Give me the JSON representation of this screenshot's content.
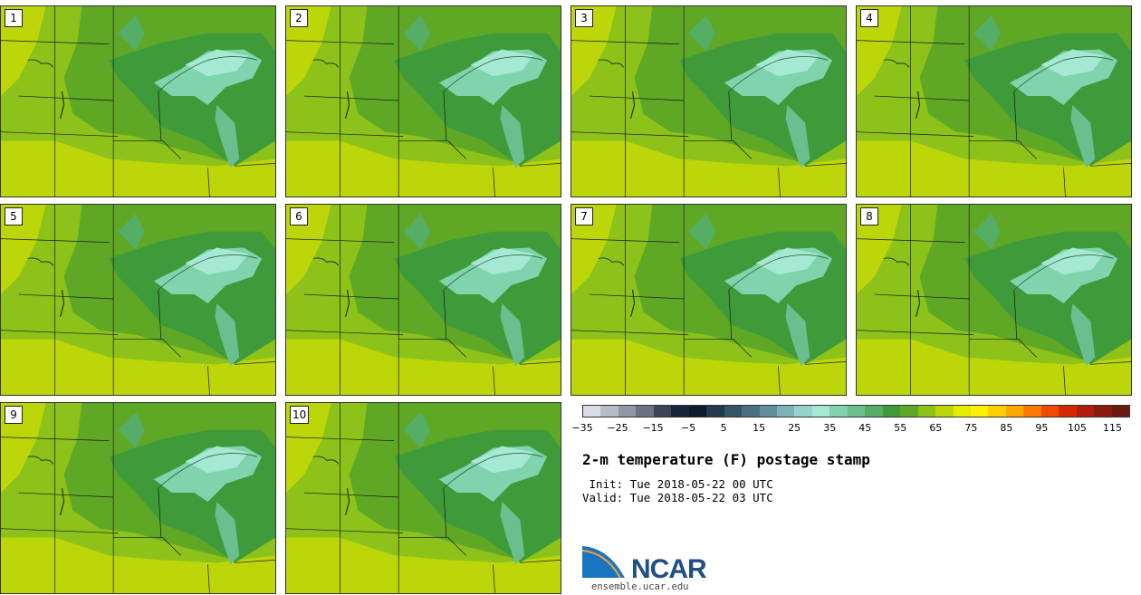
{
  "members": [
    {
      "label": "1"
    },
    {
      "label": "2"
    },
    {
      "label": "3"
    },
    {
      "label": "4"
    },
    {
      "label": "5"
    },
    {
      "label": "6"
    },
    {
      "label": "7"
    },
    {
      "label": "8"
    },
    {
      "label": "9"
    },
    {
      "label": "10"
    }
  ],
  "colorbar": {
    "colors": [
      "#d9dde3",
      "#b6bcc6",
      "#8f97a5",
      "#6a7385",
      "#3c4556",
      "#18243a",
      "#0f1c30",
      "#24384f",
      "#345468",
      "#4a6f82",
      "#5f8e9a",
      "#7fb2b6",
      "#96d3cb",
      "#a5e8d4",
      "#7fd3ad",
      "#6bbf8e",
      "#55ad66",
      "#3f9a3a",
      "#5fa826",
      "#8cc21a",
      "#bcd60a",
      "#e5ec00",
      "#ffef00",
      "#ffd000",
      "#ffa800",
      "#ff7a00",
      "#f04a00",
      "#d62800",
      "#b21c0a",
      "#8c1a0c",
      "#6a1a10"
    ],
    "tick_labels": [
      "−35",
      "−25",
      "−15",
      "−5",
      "5",
      "15",
      "25",
      "35",
      "45",
      "55",
      "65",
      "75",
      "85",
      "95",
      "105",
      "115"
    ]
  },
  "title": "2-m temperature (F) postage stamp",
  "init_line": " Init: Tue 2018-05-22 00 UTC",
  "valid_line": "Valid: Tue 2018-05-22 03 UTC",
  "logo": {
    "text": "NCAR",
    "url": "ensemble.ucar.edu"
  }
}
